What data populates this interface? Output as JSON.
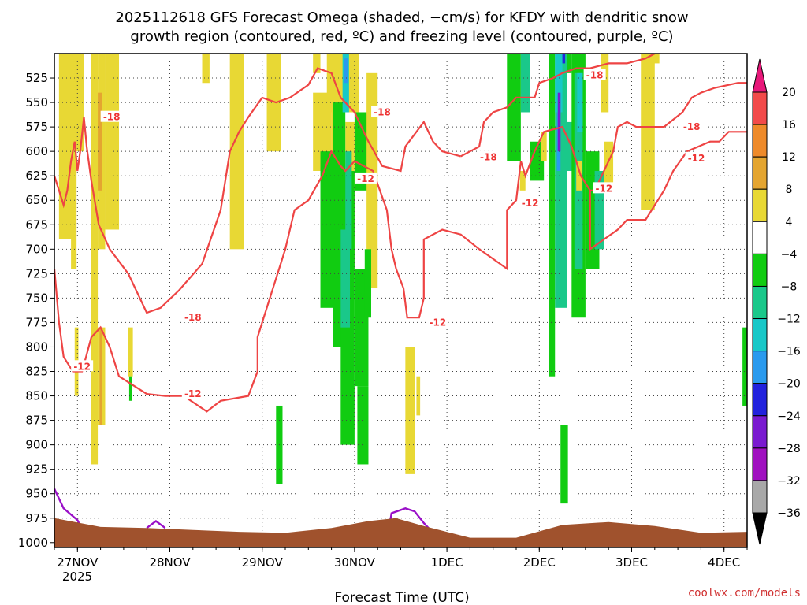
{
  "chart_data": {
    "type": "heatmap",
    "title_lines": [
      "2025112618 GFS Forecast Omega (shaded, −cm/s) for KFDY with dendritic snow",
      "growth region (contoured, red, ºC) and freezing level (contoured, purple, ºC)"
    ],
    "xlabel": "Forecast Time (UTC)",
    "ylabel": "",
    "credit": "coolwx.com/models",
    "x_tick_labels": [
      "27NOV",
      "28NOV",
      "29NOV",
      "30NOV",
      "1DEC",
      "2DEC",
      "3DEC",
      "4DEC"
    ],
    "x_year_label": "2025",
    "x_range_days": [
      0,
      7.5
    ],
    "y_tick_labels": [
      525,
      550,
      575,
      600,
      625,
      650,
      675,
      700,
      725,
      750,
      775,
      800,
      825,
      850,
      875,
      900,
      925,
      950,
      975,
      1000
    ],
    "y_range_hpa": [
      500,
      1005
    ],
    "grid": true,
    "colorbar": {
      "labels": [
        "20",
        "16",
        "12",
        "8",
        "4",
        "−4",
        "−8",
        "−12",
        "−16",
        "−20",
        "−24",
        "−28",
        "−32",
        "−36"
      ],
      "bins": [
        {
          "value": 18,
          "color": "#f24a4a"
        },
        {
          "value": 14,
          "color": "#ee8a2a"
        },
        {
          "value": 10,
          "color": "#e4a530"
        },
        {
          "value": 6,
          "color": "#e8d834"
        },
        {
          "value": 0,
          "color": "#ffffff"
        },
        {
          "value": -6,
          "color": "#11cc11"
        },
        {
          "value": -10,
          "color": "#1ac88a"
        },
        {
          "value": -14,
          "color": "#18c8c8"
        },
        {
          "value": -18,
          "color": "#2a9aee"
        },
        {
          "value": -22,
          "color": "#2222dd"
        },
        {
          "value": -26,
          "color": "#7a1ad0"
        },
        {
          "value": -30,
          "color": "#a010c0"
        },
        {
          "value": -34,
          "color": "#a8a8a8"
        }
      ],
      "top_color": "#e8187a",
      "bottom_color": "#000000"
    },
    "colors": {
      "dgz_contour": "#ee4444",
      "freezing_level": "#9a10c8",
      "terrain": "#a0522d"
    },
    "omega_cells": [
      {
        "x0": 0.05,
        "x1": 0.2,
        "p0": 500,
        "p1": 690,
        "v": 6
      },
      {
        "x0": 0.08,
        "x1": 0.14,
        "p0": 560,
        "p1": 680,
        "v": 6
      },
      {
        "x0": 0.18,
        "x1": 0.24,
        "p0": 600,
        "p1": 720,
        "v": 6
      },
      {
        "x0": 0.2,
        "x1": 0.32,
        "p0": 500,
        "p1": 600,
        "v": 6
      },
      {
        "x0": 0.22,
        "x1": 0.26,
        "p0": 780,
        "p1": 850,
        "v": 6
      },
      {
        "x0": 0.4,
        "x1": 0.47,
        "p0": 500,
        "p1": 920,
        "v": 6
      },
      {
        "x0": 0.47,
        "x1": 0.55,
        "p0": 500,
        "p1": 700,
        "v": 6
      },
      {
        "x0": 0.47,
        "x1": 0.55,
        "p0": 780,
        "p1": 880,
        "v": 6
      },
      {
        "x0": 0.47,
        "x1": 0.52,
        "p0": 540,
        "p1": 640,
        "v": 10
      },
      {
        "x0": 0.49,
        "x1": 0.52,
        "p0": 780,
        "p1": 880,
        "v": 10
      },
      {
        "x0": 0.55,
        "x1": 0.7,
        "p0": 500,
        "p1": 680,
        "v": 6
      },
      {
        "x0": 0.8,
        "x1": 0.85,
        "p0": 780,
        "p1": 830,
        "v": 6
      },
      {
        "x0": 0.81,
        "x1": 0.84,
        "p0": 830,
        "p1": 855,
        "v": -6
      },
      {
        "x0": 1.6,
        "x1": 1.68,
        "p0": 500,
        "p1": 530,
        "v": 6
      },
      {
        "x0": 1.9,
        "x1": 2.05,
        "p0": 500,
        "p1": 700,
        "v": 6
      },
      {
        "x0": 2.01,
        "x1": 2.03,
        "p0": 590,
        "p1": 640,
        "v": 6
      },
      {
        "x0": 2.4,
        "x1": 2.47,
        "p0": 860,
        "p1": 940,
        "v": -6
      },
      {
        "x0": 2.3,
        "x1": 2.45,
        "p0": 500,
        "p1": 600,
        "v": 6
      },
      {
        "x0": 2.8,
        "x1": 2.88,
        "p0": 500,
        "p1": 520,
        "v": 6
      },
      {
        "x0": 2.8,
        "x1": 3.0,
        "p0": 540,
        "p1": 620,
        "v": 6
      },
      {
        "x0": 2.95,
        "x1": 3.3,
        "p0": 500,
        "p1": 560,
        "v": 6
      },
      {
        "x0": 3.0,
        "x1": 3.1,
        "p0": 560,
        "p1": 660,
        "v": 6
      },
      {
        "x0": 3.15,
        "x1": 3.25,
        "p0": 570,
        "p1": 720,
        "v": 6
      },
      {
        "x0": 3.02,
        "x1": 3.08,
        "p0": 590,
        "p1": 620,
        "v": -6
      },
      {
        "x0": 2.88,
        "x1": 3.02,
        "p0": 600,
        "p1": 760,
        "v": -6
      },
      {
        "x0": 3.02,
        "x1": 3.15,
        "p0": 550,
        "p1": 800,
        "v": -6
      },
      {
        "x0": 3.1,
        "x1": 3.25,
        "p0": 620,
        "p1": 900,
        "v": -6
      },
      {
        "x0": 3.25,
        "x1": 3.4,
        "p0": 720,
        "p1": 840,
        "v": -6
      },
      {
        "x0": 3.1,
        "x1": 3.2,
        "p0": 680,
        "p1": 780,
        "v": -10
      },
      {
        "x0": 3.15,
        "x1": 3.22,
        "p0": 600,
        "p1": 700,
        "v": -10
      },
      {
        "x0": 3.25,
        "x1": 3.42,
        "p0": 560,
        "p1": 640,
        "v": -6
      },
      {
        "x0": 3.38,
        "x1": 3.5,
        "p0": 520,
        "p1": 740,
        "v": 6
      },
      {
        "x0": 3.12,
        "x1": 3.19,
        "p0": 500,
        "p1": 560,
        "v": -14
      },
      {
        "x0": 3.14,
        "x1": 3.18,
        "p0": 505,
        "p1": 530,
        "v": -18
      },
      {
        "x0": 3.28,
        "x1": 3.4,
        "p0": 840,
        "p1": 920,
        "v": -6
      },
      {
        "x0": 3.36,
        "x1": 3.43,
        "p0": 700,
        "p1": 770,
        "v": -6
      },
      {
        "x0": 3.8,
        "x1": 3.9,
        "p0": 800,
        "p1": 930,
        "v": 6
      },
      {
        "x0": 3.92,
        "x1": 3.96,
        "p0": 830,
        "p1": 870,
        "v": 6
      },
      {
        "x0": 4.9,
        "x1": 5.05,
        "p0": 500,
        "p1": 610,
        "v": -6
      },
      {
        "x0": 5.05,
        "x1": 5.15,
        "p0": 500,
        "p1": 560,
        "v": -10
      },
      {
        "x0": 5.15,
        "x1": 5.3,
        "p0": 590,
        "p1": 630,
        "v": -6
      },
      {
        "x0": 5.04,
        "x1": 5.1,
        "p0": 620,
        "p1": 640,
        "v": 6
      },
      {
        "x0": 5.27,
        "x1": 5.33,
        "p0": 580,
        "p1": 610,
        "v": 6
      },
      {
        "x0": 5.35,
        "x1": 5.42,
        "p0": 500,
        "p1": 830,
        "v": -6
      },
      {
        "x0": 5.42,
        "x1": 5.55,
        "p0": 500,
        "p1": 760,
        "v": -10
      },
      {
        "x0": 5.55,
        "x1": 5.62,
        "p0": 570,
        "p1": 620,
        "v": -10
      },
      {
        "x0": 5.42,
        "x1": 5.5,
        "p0": 500,
        "p1": 560,
        "v": -14
      },
      {
        "x0": 5.44,
        "x1": 5.48,
        "p0": 560,
        "p1": 620,
        "v": -18
      },
      {
        "x0": 5.45,
        "x1": 5.48,
        "p0": 540,
        "p1": 600,
        "v": -26
      },
      {
        "x0": 5.5,
        "x1": 5.53,
        "p0": 500,
        "p1": 510,
        "v": -22
      },
      {
        "x0": 5.55,
        "x1": 5.6,
        "p0": 500,
        "p1": 520,
        "v": -6
      },
      {
        "x0": 5.6,
        "x1": 5.75,
        "p0": 500,
        "p1": 770,
        "v": -6
      },
      {
        "x0": 5.63,
        "x1": 5.72,
        "p0": 520,
        "p1": 720,
        "v": -10
      },
      {
        "x0": 5.66,
        "x1": 5.72,
        "p0": 520,
        "p1": 580,
        "v": -14
      },
      {
        "x0": 5.75,
        "x1": 5.9,
        "p0": 600,
        "p1": 720,
        "v": -6
      },
      {
        "x0": 5.85,
        "x1": 5.95,
        "p0": 620,
        "p1": 700,
        "v": -10
      },
      {
        "x0": 5.92,
        "x1": 6.0,
        "p0": 500,
        "p1": 560,
        "v": 6
      },
      {
        "x0": 5.95,
        "x1": 6.05,
        "p0": 590,
        "p1": 640,
        "v": 6
      },
      {
        "x0": 5.48,
        "x1": 5.56,
        "p0": 880,
        "p1": 960,
        "v": -6
      },
      {
        "x0": 5.65,
        "x1": 5.71,
        "p0": 610,
        "p1": 640,
        "v": 6
      },
      {
        "x0": 6.35,
        "x1": 6.5,
        "p0": 500,
        "p1": 660,
        "v": 6
      },
      {
        "x0": 6.45,
        "x1": 6.55,
        "p0": 500,
        "p1": 510,
        "v": 6
      },
      {
        "x0": 6.4,
        "x1": 6.48,
        "p0": 610,
        "p1": 650,
        "v": 6
      },
      {
        "x0": 7.45,
        "x1": 7.5,
        "p0": 780,
        "p1": 860,
        "v": -6
      }
    ],
    "dgz_contours": [
      {
        "label": "-18",
        "points": [
          [
            0.0,
            625
          ],
          [
            0.05,
            640
          ],
          [
            0.1,
            655
          ],
          [
            0.14,
            640
          ],
          [
            0.18,
            610
          ],
          [
            0.22,
            590
          ],
          [
            0.25,
            620
          ],
          [
            0.28,
            600
          ],
          [
            0.32,
            565
          ],
          [
            0.35,
            595
          ],
          [
            0.4,
            630
          ],
          [
            0.48,
            675
          ],
          [
            0.6,
            700
          ],
          [
            0.8,
            725
          ],
          [
            1.0,
            765
          ],
          [
            1.15,
            760
          ],
          [
            1.35,
            742
          ],
          [
            1.6,
            715
          ],
          [
            1.8,
            660
          ],
          [
            1.9,
            600
          ],
          [
            2.0,
            580
          ],
          [
            2.1,
            565
          ],
          [
            2.25,
            545
          ],
          [
            2.4,
            550
          ],
          [
            2.55,
            545
          ],
          [
            2.75,
            532
          ],
          [
            2.85,
            515
          ],
          [
            3.0,
            520
          ],
          [
            3.1,
            545
          ],
          [
            3.25,
            560
          ],
          [
            3.4,
            590
          ],
          [
            3.55,
            615
          ],
          [
            3.75,
            620
          ],
          [
            3.8,
            595
          ],
          [
            4.0,
            570
          ],
          [
            4.1,
            590
          ],
          [
            4.2,
            600
          ],
          [
            4.4,
            605
          ]
        ]
      },
      {
        "label": "-12",
        "points": [
          [
            0.0,
            720
          ],
          [
            0.05,
            775
          ],
          [
            0.1,
            810
          ],
          [
            0.2,
            825
          ],
          [
            0.3,
            825
          ],
          [
            0.4,
            790
          ],
          [
            0.5,
            780
          ],
          [
            0.6,
            800
          ],
          [
            0.7,
            830
          ],
          [
            1.0,
            848
          ],
          [
            1.2,
            850
          ],
          [
            1.4,
            850
          ],
          [
            1.65,
            866
          ],
          [
            1.8,
            855
          ],
          [
            2.1,
            850
          ],
          [
            2.2,
            825
          ],
          [
            2.2,
            790
          ],
          [
            2.35,
            745
          ],
          [
            2.5,
            700
          ],
          [
            2.6,
            660
          ],
          [
            2.75,
            650
          ],
          [
            2.9,
            625
          ],
          [
            3.0,
            600
          ],
          [
            3.1,
            615
          ],
          [
            3.15,
            620
          ],
          [
            3.25,
            610
          ],
          [
            3.45,
            620
          ],
          [
            3.6,
            660
          ],
          [
            3.65,
            700
          ],
          [
            3.7,
            720
          ],
          [
            3.78,
            740
          ],
          [
            3.82,
            770
          ],
          [
            3.95,
            770
          ],
          [
            4.0,
            750
          ],
          [
            4.0,
            690
          ],
          [
            4.2,
            680
          ],
          [
            4.4,
            685
          ],
          [
            4.6,
            700
          ],
          [
            4.9,
            720
          ],
          [
            4.9,
            660
          ],
          [
            5.0,
            650
          ],
          [
            5.05,
            610
          ],
          [
            5.1,
            625
          ],
          [
            5.2,
            600
          ],
          [
            5.3,
            580
          ],
          [
            5.5,
            575
          ],
          [
            5.6,
            595
          ],
          [
            5.7,
            625
          ],
          [
            5.8,
            640
          ],
          [
            5.85,
            640
          ],
          [
            6.05,
            600
          ],
          [
            6.1,
            575
          ],
          [
            6.2,
            570
          ],
          [
            6.3,
            575
          ],
          [
            6.45,
            575
          ],
          [
            6.6,
            575
          ],
          [
            6.8,
            560
          ],
          [
            6.9,
            545
          ],
          [
            7.0,
            540
          ],
          [
            7.15,
            535
          ],
          [
            7.4,
            530
          ],
          [
            7.5,
            530
          ]
        ]
      },
      {
        "label": "-18",
        "points": [
          [
            4.4,
            605
          ],
          [
            4.5,
            600
          ],
          [
            4.6,
            595
          ],
          [
            4.65,
            570
          ],
          [
            4.75,
            560
          ],
          [
            4.9,
            555
          ],
          [
            5.0,
            545
          ],
          [
            5.2,
            545
          ],
          [
            5.25,
            530
          ],
          [
            5.4,
            525
          ],
          [
            5.5,
            520
          ],
          [
            5.65,
            515
          ],
          [
            5.8,
            515
          ],
          [
            6.0,
            510
          ],
          [
            6.2,
            510
          ],
          [
            6.4,
            505
          ],
          [
            6.5,
            500
          ]
        ]
      },
      {
        "label": "-12",
        "points": [
          [
            5.8,
            640
          ],
          [
            5.8,
            700
          ],
          [
            5.95,
            690
          ],
          [
            6.1,
            680
          ],
          [
            6.2,
            670
          ],
          [
            6.4,
            670
          ],
          [
            6.6,
            640
          ],
          [
            6.7,
            620
          ],
          [
            6.85,
            600
          ],
          [
            7.1,
            590
          ],
          [
            7.2,
            590
          ],
          [
            7.3,
            580
          ],
          [
            7.5,
            580
          ]
        ]
      }
    ],
    "contour_labels": [
      {
        "text": "-18",
        "x": 0.62,
        "p": 565
      },
      {
        "text": "-18",
        "x": 1.5,
        "p": 770
      },
      {
        "text": "-12",
        "x": 0.3,
        "p": 820
      },
      {
        "text": "-12",
        "x": 1.5,
        "p": 848
      },
      {
        "text": "-18",
        "x": 3.55,
        "p": 560
      },
      {
        "text": "-12",
        "x": 3.37,
        "p": 628
      },
      {
        "text": "-12",
        "x": 4.15,
        "p": 775
      },
      {
        "text": "-18",
        "x": 4.7,
        "p": 606
      },
      {
        "text": "-12",
        "x": 5.15,
        "p": 653
      },
      {
        "text": "-18",
        "x": 5.85,
        "p": 522
      },
      {
        "text": "-12",
        "x": 5.95,
        "p": 638
      },
      {
        "text": "-18",
        "x": 6.9,
        "p": 575
      },
      {
        "text": "-12",
        "x": 6.95,
        "p": 607
      }
    ],
    "freezing_level": [
      [
        [
          0.0,
          945
        ],
        [
          0.1,
          965
        ],
        [
          0.25,
          977
        ],
        [
          0.32,
          990
        ]
      ],
      [
        [
          1.0,
          985
        ],
        [
          1.1,
          978
        ],
        [
          1.2,
          985
        ]
      ],
      [
        [
          3.6,
          1000
        ],
        [
          3.65,
          970
        ],
        [
          3.8,
          965
        ],
        [
          3.9,
          968
        ],
        [
          4.0,
          980
        ],
        [
          4.1,
          990
        ]
      ]
    ],
    "terrain": [
      [
        0.0,
        975
      ],
      [
        0.5,
        984
      ],
      [
        1.0,
        985
      ],
      [
        1.5,
        987
      ],
      [
        2.0,
        989
      ],
      [
        2.5,
        990
      ],
      [
        3.0,
        985
      ],
      [
        3.4,
        978
      ],
      [
        3.7,
        975
      ],
      [
        4.0,
        983
      ],
      [
        4.5,
        995
      ],
      [
        5.0,
        995
      ],
      [
        5.5,
        982
      ],
      [
        6.0,
        979
      ],
      [
        6.5,
        983
      ],
      [
        7.0,
        990
      ],
      [
        7.5,
        989
      ]
    ]
  }
}
